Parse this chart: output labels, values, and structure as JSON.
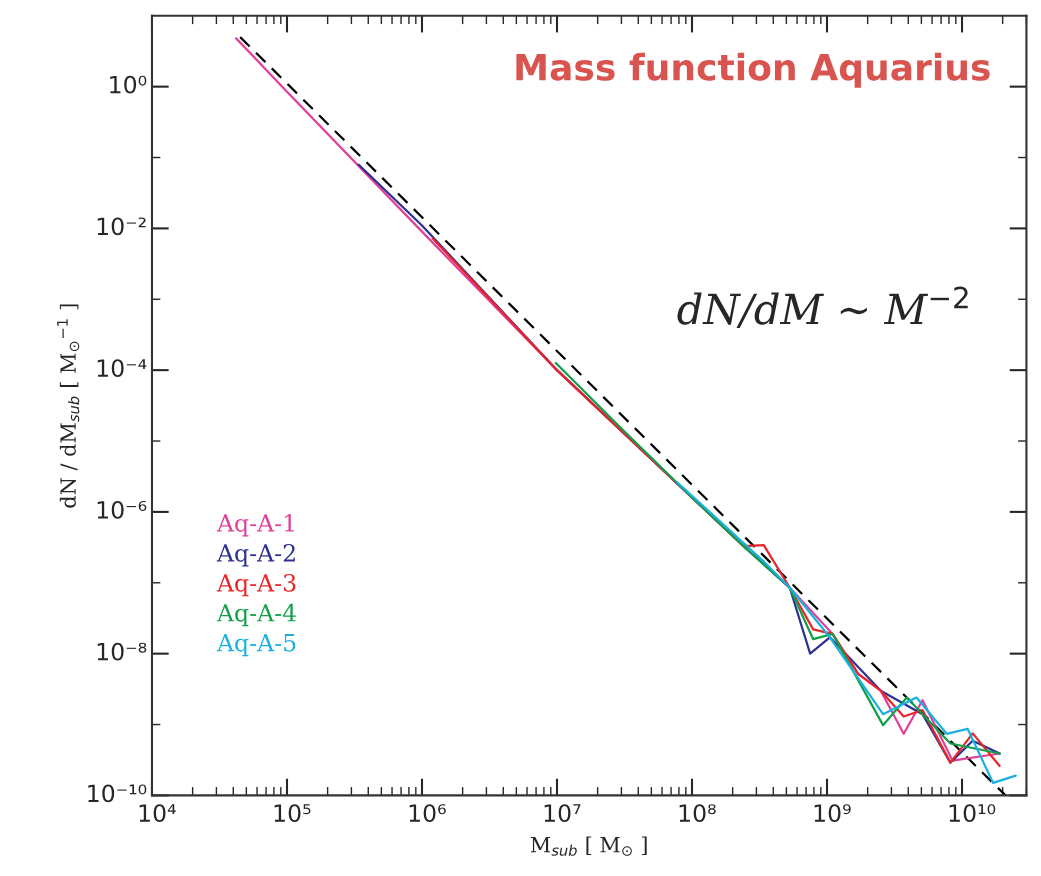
{
  "chart_data": {
    "type": "line",
    "title": "Mass function Aquarius",
    "xlabel": "M$_{sub}$ [ M$_{⊙}$ ]",
    "ylabel": "dN / dM$_{sub}$ [ M$_{⊙}$$^{−1}$ ]",
    "annotations": [
      "dN/dM ∼ M$^{−2}$"
    ],
    "log": "xy",
    "xlim": [
      10000.0,
      30000000000.0
    ],
    "ylim": [
      1e-10,
      10
    ],
    "xticks": [
      {
        "value": 10000.0,
        "label": "10⁴"
      },
      {
        "value": 100000.0,
        "label": "10⁵"
      },
      {
        "value": 1000000.0,
        "label": "10⁶"
      },
      {
        "value": 10000000.0,
        "label": "10⁷"
      },
      {
        "value": 100000000.0,
        "label": "10⁸"
      },
      {
        "value": 1000000000.0,
        "label": "10⁹"
      },
      {
        "value": 10000000000.0,
        "label": "10¹⁰"
      }
    ],
    "yticks": [
      {
        "value": 1e-10,
        "label": "10⁻¹⁰"
      },
      {
        "value": 1e-09,
        "label": null
      },
      {
        "value": 1e-08,
        "label": "10⁻⁸"
      },
      {
        "value": 1e-07,
        "label": null
      },
      {
        "value": 1e-06,
        "label": "10⁻⁶"
      },
      {
        "value": 1e-05,
        "label": null
      },
      {
        "value": 0.0001,
        "label": "10⁻⁴"
      },
      {
        "value": 0.001,
        "label": null
      },
      {
        "value": 0.01,
        "label": "10⁻²"
      },
      {
        "value": 0.1,
        "label": null
      },
      {
        "value": 1,
        "label": "10⁰"
      }
    ],
    "grid": false,
    "legend": "left",
    "series": [
      {
        "type": "line",
        "color": "#000000",
        "line_style": "dashed",
        "x": [
          45000.0,
          21000000000.0
        ],
        "values": [
          5.0,
          1e-10
        ]
      },
      {
        "name": "Aq-A-1",
        "color": "#e0409a",
        "x": [
          42000.0,
          100000.0,
          1000000.0,
          10000000.0,
          100000000.0,
          240000000.0,
          530000000.0,
          1100000000.0,
          1700000000.0,
          2500000000.0,
          3700000000.0,
          5100000000.0,
          8500000000.0,
          19000000000.0
        ],
        "values": [
          4.8,
          0.85,
          0.009,
          0.0001,
          1.6e-06,
          3.3e-07,
          8.5e-08,
          1.9e-08,
          5.2e-09,
          3e-09,
          7.4e-10,
          2.2e-09,
          3.1e-10,
          3.9e-10
        ]
      },
      {
        "name": "Aq-A-2",
        "color": "#2e3192",
        "x": [
          340000.0,
          1000000.0,
          10000000.0,
          100000000.0,
          240000000.0,
          530000000.0,
          750000000.0,
          1050000000.0,
          2500000000.0,
          5100000000.0,
          8200000000.0,
          12000000000.0,
          19000000000.0
        ],
        "values": [
          0.079,
          0.011,
          0.0001,
          1.6e-06,
          3.3e-07,
          8.5e-08,
          1e-08,
          1.7e-08,
          3e-09,
          1.4e-09,
          2.9e-10,
          5.9e-10,
          3.9e-10
        ]
      },
      {
        "name": "Aq-A-3",
        "color": "#e8262a",
        "x": [
          1200000.0,
          10000000.0,
          100000000.0,
          240000000.0,
          340000000.0,
          530000000.0,
          790000000.0,
          1100000000.0,
          1700000000.0,
          2500000000.0,
          3700000000.0,
          5100000000.0,
          8200000000.0,
          12000000000.0,
          19000000000.0
        ],
        "values": [
          0.0072,
          0.0001,
          1.6e-06,
          3.3e-07,
          3.4e-07,
          8.5e-08,
          2.2e-08,
          1.9e-08,
          5.2e-09,
          3e-09,
          1.3e-09,
          1.6e-09,
          2.9e-10,
          7.5e-10,
          2.6e-10
        ]
      },
      {
        "name": "Aq-A-4",
        "color": "#10a04a",
        "x": [
          9800000.0,
          30000000.0,
          100000000.0,
          240000000.0,
          530000000.0,
          790000000.0,
          1100000000.0,
          2600000000.0,
          3900000000.0,
          8200000000.0,
          19000000000.0
        ],
        "values": [
          0.000126,
          1.5e-05,
          1.6e-06,
          3.3e-07,
          8.5e-08,
          1.6e-08,
          1.9e-08,
          9.8e-10,
          2.4e-09,
          5.4e-10,
          3.9e-10
        ]
      },
      {
        "name": "Aq-A-5",
        "color": "#1ab0e0",
        "x": [
          78000000.0,
          340000000.0,
          530000000.0,
          1050000000.0,
          2600000000.0,
          4600000000.0,
          7700000000.0,
          11000000000.0,
          17000000000.0,
          25000000000.0
        ],
        "values": [
          2.6e-06,
          2e-07,
          8.5e-08,
          1.7e-08,
          1.4e-09,
          2.4e-09,
          7.4e-10,
          8.7e-10,
          1.5e-10,
          1.9e-10
        ]
      }
    ]
  }
}
